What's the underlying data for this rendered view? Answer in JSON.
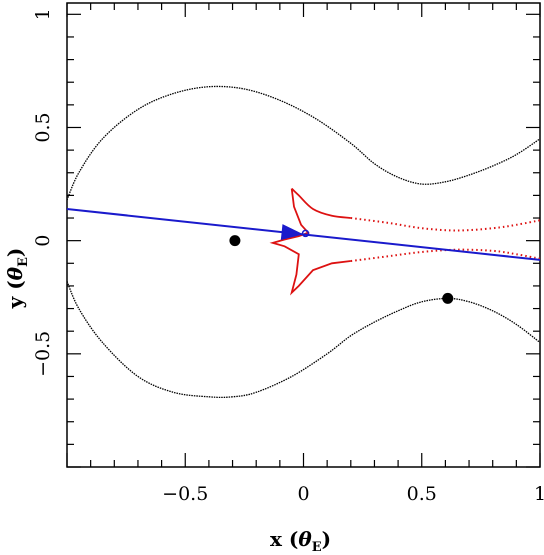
{
  "chart_data": {
    "type": "scatter",
    "title": "",
    "xlabel": {
      "main": "x",
      "symbol": "θ",
      "sub": "E"
    },
    "ylabel": {
      "main": "y",
      "symbol": "θ",
      "sub": "E"
    },
    "xlim": [
      -1,
      1
    ],
    "ylim": [
      -1,
      1.05
    ],
    "grid": false,
    "x_tick_labels": [
      "−0.5",
      "0",
      "0.5",
      "1"
    ],
    "y_tick_labels": [
      "−0.5",
      "0",
      "0.5",
      "1"
    ],
    "x_tick_values": [
      -0.5,
      0,
      0.5,
      1
    ],
    "y_tick_values": [
      -0.5,
      0,
      0.5,
      1
    ],
    "colors": {
      "critical_curve": "#000000",
      "caustic": "#dd1111",
      "trajectory": "#1a1acc",
      "source": "#1a1acc",
      "lens": "#000000"
    },
    "lenses": [
      {
        "x": -0.29,
        "y": 0.0
      },
      {
        "x": 0.61,
        "y": -0.255
      }
    ],
    "critical_curve": {
      "upper": [
        [
          -1.0,
          0.18
        ],
        [
          -0.95,
          0.3
        ],
        [
          -0.85,
          0.45
        ],
        [
          -0.7,
          0.58
        ],
        [
          -0.55,
          0.65
        ],
        [
          -0.4,
          0.68
        ],
        [
          -0.25,
          0.67
        ],
        [
          -0.1,
          0.62
        ],
        [
          0.05,
          0.54
        ],
        [
          0.2,
          0.43
        ],
        [
          0.3,
          0.34
        ],
        [
          0.4,
          0.28
        ],
        [
          0.5,
          0.25
        ],
        [
          0.6,
          0.26
        ],
        [
          0.7,
          0.29
        ],
        [
          0.8,
          0.33
        ],
        [
          0.9,
          0.38
        ],
        [
          1.0,
          0.45
        ]
      ],
      "lower": [
        [
          -1.0,
          -0.18
        ],
        [
          -0.95,
          -0.3
        ],
        [
          -0.85,
          -0.45
        ],
        [
          -0.7,
          -0.6
        ],
        [
          -0.55,
          -0.67
        ],
        [
          -0.4,
          -0.69
        ],
        [
          -0.3,
          -0.69
        ],
        [
          -0.2,
          -0.67
        ],
        [
          -0.05,
          -0.6
        ],
        [
          0.1,
          -0.5
        ],
        [
          0.2,
          -0.42
        ],
        [
          0.3,
          -0.36
        ],
        [
          0.4,
          -0.31
        ],
        [
          0.5,
          -0.27
        ],
        [
          0.61,
          -0.255
        ],
        [
          0.7,
          -0.27
        ],
        [
          0.8,
          -0.31
        ],
        [
          0.9,
          -0.37
        ],
        [
          1.0,
          -0.45
        ]
      ]
    },
    "caustic": {
      "solid": [
        [
          -0.05,
          0.23
        ],
        [
          -0.04,
          0.15
        ],
        [
          -0.01,
          0.07
        ],
        [
          0.02,
          0.035
        ],
        [
          -0.02,
          0.02
        ],
        [
          -0.08,
          0.005
        ],
        [
          -0.13,
          -0.01
        ],
        [
          -0.08,
          -0.025
        ],
        [
          -0.02,
          -0.06
        ],
        [
          -0.03,
          -0.15
        ],
        [
          -0.05,
          -0.23
        ],
        [
          -0.02,
          -0.2
        ],
        [
          0.04,
          -0.13
        ],
        [
          0.12,
          -0.1
        ],
        [
          0.2,
          -0.09
        ]
      ],
      "solid_upper": [
        [
          -0.05,
          0.23
        ],
        [
          -0.02,
          0.2
        ],
        [
          0.04,
          0.14
        ],
        [
          0.12,
          0.11
        ],
        [
          0.2,
          0.1
        ]
      ],
      "dotted_upper": [
        [
          0.2,
          0.1
        ],
        [
          0.35,
          0.08
        ],
        [
          0.5,
          0.055
        ],
        [
          0.65,
          0.045
        ],
        [
          0.8,
          0.055
        ],
        [
          0.9,
          0.07
        ],
        [
          1.0,
          0.09
        ]
      ],
      "dotted_lower": [
        [
          0.2,
          -0.09
        ],
        [
          0.35,
          -0.07
        ],
        [
          0.5,
          -0.05
        ],
        [
          0.65,
          -0.04
        ],
        [
          0.8,
          -0.045
        ],
        [
          0.9,
          -0.06
        ],
        [
          1.0,
          -0.08
        ]
      ]
    },
    "trajectory": [
      [
        -1.0,
        0.14
      ],
      [
        1.0,
        -0.085
      ]
    ],
    "source": {
      "x": 0.0,
      "y": 0.03,
      "arrow_from_x": -0.1,
      "arrow_to_x": 0.0
    }
  }
}
